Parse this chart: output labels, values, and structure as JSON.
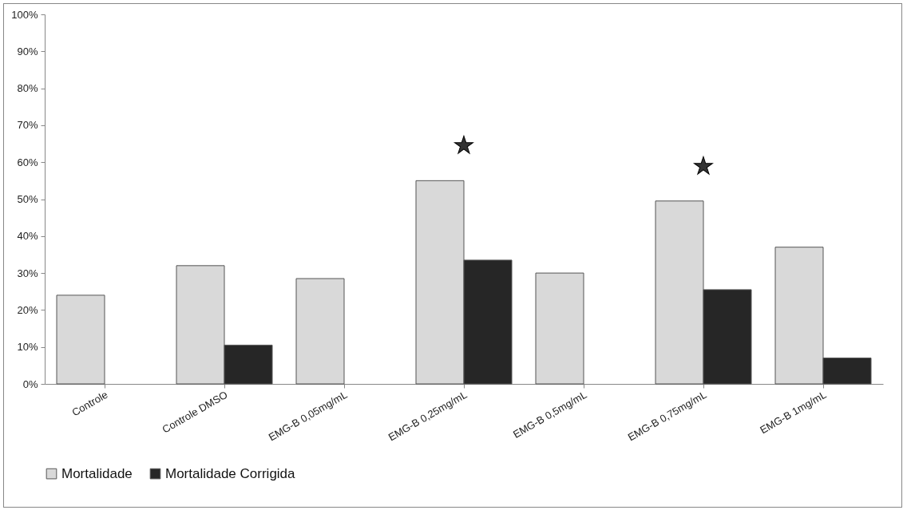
{
  "chart_data": {
    "type": "bar",
    "categories": [
      "Controle",
      "Controle DMSO",
      "EMG-B 0,05mg/mL",
      "EMG-B 0,25mg/mL",
      "EMG-B 0,5mg/mL",
      "EMG-B 0,75mg/mL",
      "EMG-B 1mg/mL"
    ],
    "series": [
      {
        "name": "Mortalidade",
        "color": "#d9d9d9",
        "values": [
          24,
          32,
          28.5,
          55,
          30,
          49.5,
          37
        ]
      },
      {
        "name": "Mortalidade Corrigida",
        "color": "#262626",
        "values": [
          null,
          10.5,
          null,
          33.5,
          null,
          25.5,
          7
        ]
      }
    ],
    "ylim": [
      0,
      100
    ],
    "yticks": [
      {
        "value": 0,
        "label": "0%"
      },
      {
        "value": 10,
        "label": "10%"
      },
      {
        "value": 20,
        "label": "20%"
      },
      {
        "value": 30,
        "label": "30%"
      },
      {
        "value": 40,
        "label": "40%"
      },
      {
        "value": 50,
        "label": "50%"
      },
      {
        "value": 60,
        "label": "60%"
      },
      {
        "value": 70,
        "label": "70%"
      },
      {
        "value": 80,
        "label": "80%"
      },
      {
        "value": 90,
        "label": "90%"
      },
      {
        "value": 100,
        "label": "100%"
      }
    ],
    "annotations": [
      {
        "text": "★",
        "x": "EMG-B 0,25mg/mL",
        "y": 55
      },
      {
        "text": "★",
        "x": "EMG-B 0,75mg/mL",
        "y": 49.5
      }
    ],
    "legend": "bottom",
    "grid": false
  }
}
